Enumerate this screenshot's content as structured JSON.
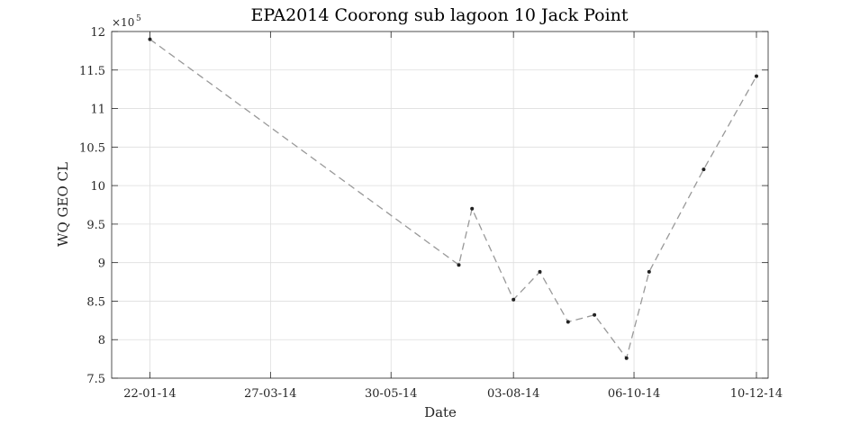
{
  "chart_data": {
    "type": "line",
    "title": "EPA2014 Coorong sub lagoon 10 Jack Point",
    "xlabel": "Date",
    "ylabel": "WQ GEO CL",
    "y_exponent_label": "×10",
    "y_exponent": "5",
    "ylim": [
      7.5,
      12
    ],
    "y_ticks": [
      "7.5",
      "8",
      "8.5",
      "9",
      "9.5",
      "10",
      "10.5",
      "11",
      "11.5",
      "12"
    ],
    "x_ticks": [
      "22-01-14",
      "27-03-14",
      "30-05-14",
      "03-08-14",
      "06-10-14",
      "10-12-14"
    ],
    "grid": true,
    "line_style": "dashed",
    "line_color": "#999999",
    "marker_color": "#222222",
    "series": [
      {
        "points": [
          {
            "date": "2014-01-22",
            "value": 11.9
          },
          {
            "date": "2014-07-05",
            "value": 8.97
          },
          {
            "date": "2014-07-12",
            "value": 9.7
          },
          {
            "date": "2014-08-03",
            "value": 8.52
          },
          {
            "date": "2014-08-17",
            "value": 8.88
          },
          {
            "date": "2014-09-01",
            "value": 8.23
          },
          {
            "date": "2014-09-15",
            "value": 8.32
          },
          {
            "date": "2014-10-02",
            "value": 7.76
          },
          {
            "date": "2014-10-14",
            "value": 8.88
          },
          {
            "date": "2014-11-12",
            "value": 10.21
          },
          {
            "date": "2014-12-10",
            "value": 11.42
          }
        ]
      }
    ]
  }
}
